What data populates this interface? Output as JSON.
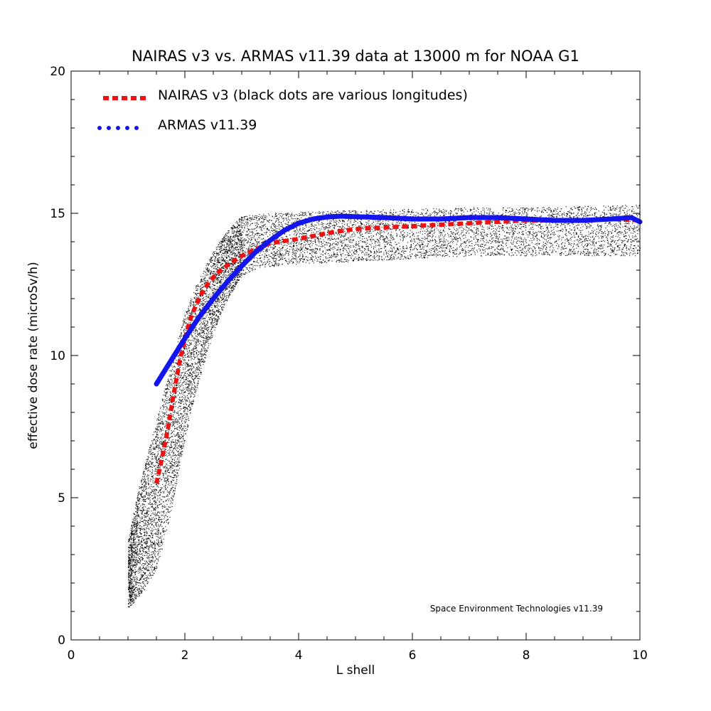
{
  "chart_data": {
    "type": "line",
    "title": "NAIRAS  v3 vs. ARMAS v11.39 data at 13000 m for NOAA G1",
    "xlabel": "L shell",
    "ylabel": "effective dose rate (microSv/h)",
    "xlim": [
      0,
      10
    ],
    "ylim": [
      0,
      20
    ],
    "xticks": [
      "0",
      "2",
      "4",
      "6",
      "8",
      "10"
    ],
    "yticks": [
      "0",
      "5",
      "10",
      "15",
      "20"
    ],
    "grid": false,
    "legend_position": "top-left",
    "annotation": "Space Environment Technologies v11.39",
    "series": [
      {
        "name": "NAIRAS v3 (black dots are various longitudes)",
        "style": "dashed",
        "color": "#ee1111",
        "x": [
          1.5,
          1.6,
          1.7,
          1.8,
          1.9,
          2.0,
          2.1,
          2.2,
          2.3,
          2.4,
          2.5,
          2.6,
          2.8,
          3.0,
          3.2,
          3.5,
          4.0,
          4.5,
          5.0,
          5.5,
          6.0,
          6.5,
          7.0,
          7.5,
          8.0,
          8.5,
          9.0,
          9.5,
          10.0
        ],
        "y": [
          5.5,
          6.4,
          7.4,
          8.6,
          9.7,
          10.6,
          11.3,
          11.8,
          12.2,
          12.5,
          12.75,
          12.95,
          13.25,
          13.5,
          13.7,
          13.95,
          14.1,
          14.3,
          14.45,
          14.5,
          14.55,
          14.6,
          14.65,
          14.7,
          14.75,
          14.75,
          14.75,
          14.8,
          14.75
        ]
      },
      {
        "name": "ARMAS v11.39",
        "style": "dotted",
        "color": "#1414ee",
        "x": [
          1.5,
          1.75,
          2.0,
          2.25,
          2.5,
          2.75,
          3.0,
          3.25,
          3.5,
          3.75,
          4.0,
          4.25,
          4.5,
          4.75,
          5.0,
          5.5,
          6.0,
          6.5,
          7.0,
          7.5,
          8.0,
          8.5,
          9.0,
          9.5,
          9.85,
          10.0
        ],
        "y": [
          9.0,
          9.8,
          10.6,
          11.35,
          12.0,
          12.6,
          13.15,
          13.65,
          14.05,
          14.4,
          14.65,
          14.8,
          14.87,
          14.9,
          14.88,
          14.85,
          14.8,
          14.8,
          14.85,
          14.85,
          14.8,
          14.75,
          14.75,
          14.8,
          14.85,
          14.7
        ]
      }
    ],
    "scatter_cloud": {
      "color": "#000000",
      "description_series": "various longitudes",
      "lower_envelope": {
        "x": [
          1.0,
          1.1,
          1.3,
          1.5,
          1.7,
          1.9,
          2.1,
          2.3,
          2.5,
          2.7,
          3.0,
          3.3,
          3.5,
          3.8,
          4.0,
          5.0,
          6.0,
          7.0,
          8.0,
          9.0,
          10.0
        ],
        "y": [
          1.1,
          1.3,
          1.8,
          2.5,
          4.0,
          6.0,
          8.0,
          9.5,
          10.8,
          11.8,
          12.8,
          13.1,
          13.1,
          13.2,
          13.2,
          13.3,
          13.4,
          13.5,
          13.5,
          13.5,
          13.5
        ]
      },
      "upper_envelope": {
        "x": [
          1.0,
          1.1,
          1.2,
          1.4,
          1.6,
          1.8,
          2.0,
          2.2,
          2.4,
          2.6,
          2.8,
          3.0,
          3.5,
          4.0,
          5.0,
          6.0,
          7.0,
          8.0,
          9.0,
          10.0
        ],
        "y": [
          3.5,
          4.5,
          5.5,
          7.0,
          8.5,
          10.0,
          11.5,
          12.5,
          13.3,
          14.0,
          14.5,
          14.9,
          15.0,
          15.05,
          15.1,
          15.15,
          15.2,
          15.2,
          15.25,
          15.3
        ]
      }
    }
  }
}
